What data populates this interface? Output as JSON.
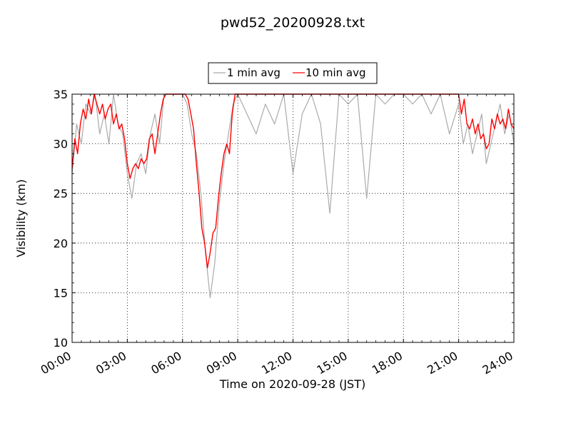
{
  "chart_data": {
    "type": "line",
    "title": "pwd52_20200928.txt",
    "xlabel": "Time on 2020-09-28 (JST)",
    "ylabel": "Visibility (km)",
    "x_ticks": [
      "00:00",
      "03:00",
      "06:00",
      "09:00",
      "12:00",
      "15:00",
      "18:00",
      "21:00",
      "24:00"
    ],
    "x_tick_hours": [
      0,
      3,
      6,
      9,
      12,
      15,
      18,
      21,
      24
    ],
    "y_ticks": [
      10,
      15,
      20,
      25,
      30,
      35
    ],
    "xlim_hours": [
      0,
      24
    ],
    "ylim": [
      10,
      35
    ],
    "grid": true,
    "legend_position": "top-center",
    "series": [
      {
        "name": "1 min avg",
        "color": "#aaaaaa",
        "x_hours": [
          0.0,
          0.25,
          0.5,
          0.75,
          1.0,
          1.25,
          1.5,
          1.75,
          2.0,
          2.25,
          2.5,
          2.75,
          3.0,
          3.25,
          3.5,
          3.75,
          4.0,
          4.25,
          4.5,
          4.75,
          5.0,
          5.25,
          5.5,
          5.75,
          6.0,
          6.25,
          6.5,
          6.75,
          7.0,
          7.25,
          7.5,
          7.75,
          8.0,
          8.25,
          8.5,
          8.75,
          9.0,
          9.5,
          10.0,
          10.5,
          11.0,
          11.5,
          12.0,
          12.5,
          13.0,
          13.5,
          14.0,
          14.5,
          15.0,
          15.5,
          16.0,
          16.5,
          17.0,
          17.5,
          18.0,
          18.5,
          19.0,
          19.5,
          20.0,
          20.5,
          21.0,
          21.25,
          21.5,
          21.75,
          22.0,
          22.25,
          22.5,
          22.75,
          23.0,
          23.25,
          23.5,
          23.75,
          24.0
        ],
        "values": [
          27,
          32,
          30,
          34,
          33,
          35,
          31,
          33,
          30,
          35,
          32,
          31,
          27,
          24.5,
          28,
          29,
          27,
          31,
          33,
          30,
          35,
          35,
          35,
          35,
          35,
          34,
          31,
          29,
          25,
          19,
          14.5,
          18,
          24,
          28,
          31,
          34,
          35,
          33,
          31,
          34,
          32,
          35,
          27,
          33,
          35,
          32,
          23,
          35,
          34,
          35,
          24.5,
          35,
          34,
          35,
          35,
          34,
          35,
          33,
          35,
          31,
          34,
          30,
          32,
          29,
          31,
          33,
          28,
          30,
          32,
          34,
          31,
          33,
          30
        ]
      },
      {
        "name": "10 min avg",
        "color": "#ff0000",
        "x_hours": [
          0.0,
          0.15,
          0.3,
          0.45,
          0.6,
          0.75,
          0.9,
          1.05,
          1.2,
          1.35,
          1.5,
          1.65,
          1.8,
          1.95,
          2.1,
          2.25,
          2.4,
          2.55,
          2.7,
          2.85,
          3.0,
          3.15,
          3.3,
          3.45,
          3.6,
          3.75,
          3.9,
          4.05,
          4.2,
          4.35,
          4.5,
          4.65,
          4.8,
          4.95,
          5.1,
          5.25,
          5.4,
          5.55,
          5.7,
          5.85,
          6.0,
          6.15,
          6.3,
          6.45,
          6.6,
          6.75,
          6.9,
          7.05,
          7.2,
          7.35,
          7.5,
          7.65,
          7.8,
          7.95,
          8.1,
          8.25,
          8.4,
          8.55,
          8.7,
          8.85,
          9.0,
          9.5,
          10.0,
          10.5,
          11.0,
          11.5,
          12.0,
          12.5,
          13.0,
          13.5,
          14.0,
          14.5,
          15.0,
          15.5,
          16.0,
          16.5,
          17.0,
          17.5,
          18.0,
          18.5,
          19.0,
          19.5,
          20.0,
          20.5,
          20.8,
          21.0,
          21.15,
          21.3,
          21.45,
          21.6,
          21.75,
          21.9,
          22.05,
          22.2,
          22.35,
          22.5,
          22.65,
          22.8,
          22.95,
          23.1,
          23.25,
          23.4,
          23.55,
          23.7,
          23.85,
          24.0
        ],
        "values": [
          27.5,
          30.5,
          29,
          32,
          33.5,
          32.5,
          34.5,
          33,
          35,
          34,
          33,
          34,
          32.5,
          33.5,
          34,
          32,
          33,
          31.5,
          32,
          30.5,
          28,
          26.5,
          27.5,
          28,
          27.5,
          28.5,
          28,
          28.5,
          30.5,
          31,
          29,
          31,
          33,
          34.5,
          35,
          35,
          35,
          35,
          35,
          35,
          35,
          35,
          34.5,
          33,
          31.5,
          28,
          25,
          21.5,
          20,
          17.5,
          19,
          21,
          21.5,
          24.5,
          27,
          29,
          30,
          29,
          33,
          35,
          35,
          35,
          35,
          35,
          35,
          35,
          35,
          35,
          35,
          35,
          35,
          35,
          35,
          35,
          35,
          35,
          35,
          35,
          35,
          35,
          35,
          35,
          35,
          35,
          35,
          35,
          33,
          34.5,
          32,
          31.5,
          32.5,
          31,
          32,
          30.5,
          31,
          29.5,
          30,
          32.5,
          31.5,
          33,
          32,
          32.5,
          31.5,
          33.5,
          32,
          31.5
        ]
      }
    ]
  }
}
